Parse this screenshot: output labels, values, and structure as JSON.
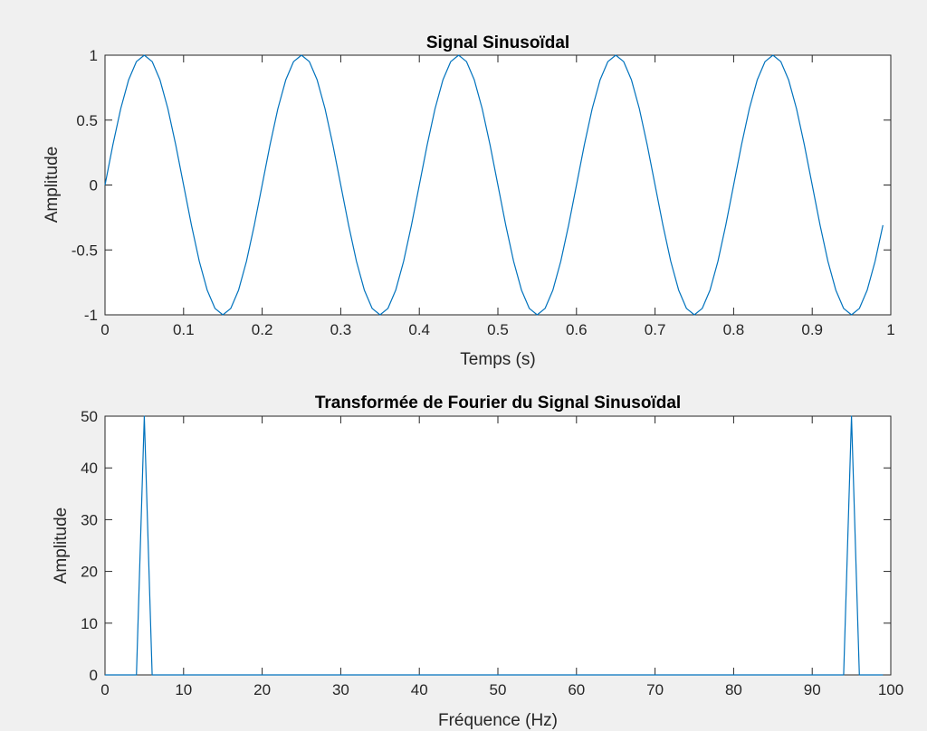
{
  "chart_data": [
    {
      "type": "line",
      "title": "Signal Sinusoïdal",
      "xlabel": "Temps (s)",
      "ylabel": "Amplitude",
      "xlim": [
        0,
        1
      ],
      "ylim": [
        -1,
        1
      ],
      "xticks": [
        "0",
        "0.1",
        "0.2",
        "0.3",
        "0.4",
        "0.5",
        "0.6",
        "0.7",
        "0.8",
        "0.9",
        "1"
      ],
      "yticks": [
        "-1",
        "-0.5",
        "0",
        "0.5",
        "1"
      ],
      "grid": false,
      "color": "#0072BD",
      "x": [
        0,
        0.01,
        0.02,
        0.03,
        0.04,
        0.05,
        0.06,
        0.07,
        0.08,
        0.09,
        0.1,
        0.11,
        0.12,
        0.13,
        0.14,
        0.15,
        0.16,
        0.17,
        0.18,
        0.19,
        0.2,
        0.21,
        0.22,
        0.23,
        0.24,
        0.25,
        0.26,
        0.27,
        0.28,
        0.29,
        0.3,
        0.31,
        0.32,
        0.33,
        0.34,
        0.35,
        0.36,
        0.37,
        0.38,
        0.39,
        0.4,
        0.41,
        0.42,
        0.43,
        0.44,
        0.45,
        0.46,
        0.47,
        0.48,
        0.49,
        0.5,
        0.51,
        0.52,
        0.53,
        0.54,
        0.55,
        0.56,
        0.57,
        0.58,
        0.59,
        0.6,
        0.61,
        0.62,
        0.63,
        0.64,
        0.65,
        0.66,
        0.67,
        0.68,
        0.69,
        0.7,
        0.71,
        0.72,
        0.73,
        0.74,
        0.75,
        0.76,
        0.77,
        0.78,
        0.79,
        0.8,
        0.81,
        0.82,
        0.83,
        0.84,
        0.85,
        0.86,
        0.87,
        0.88,
        0.89,
        0.9,
        0.91,
        0.92,
        0.93,
        0.94,
        0.95,
        0.96,
        0.97,
        0.98,
        0.99
      ],
      "y": [
        0,
        0.309,
        0.588,
        0.809,
        0.951,
        1,
        0.951,
        0.809,
        0.588,
        0.309,
        0,
        -0.309,
        -0.588,
        -0.809,
        -0.951,
        -1,
        -0.951,
        -0.809,
        -0.588,
        -0.309,
        0,
        0.309,
        0.588,
        0.809,
        0.951,
        1,
        0.951,
        0.809,
        0.588,
        0.309,
        0,
        -0.309,
        -0.588,
        -0.809,
        -0.951,
        -1,
        -0.951,
        -0.809,
        -0.588,
        -0.309,
        0,
        0.309,
        0.588,
        0.809,
        0.951,
        1,
        0.951,
        0.809,
        0.588,
        0.309,
        0,
        -0.309,
        -0.588,
        -0.809,
        -0.951,
        -1,
        -0.951,
        -0.809,
        -0.588,
        -0.309,
        0,
        0.309,
        0.588,
        0.809,
        0.951,
        1,
        0.951,
        0.809,
        0.588,
        0.309,
        0,
        -0.309,
        -0.588,
        -0.809,
        -0.951,
        -1,
        -0.951,
        -0.809,
        -0.588,
        -0.309,
        0,
        0.309,
        0.588,
        0.809,
        0.951,
        1,
        0.951,
        0.809,
        0.588,
        0.309,
        0,
        -0.309,
        -0.588,
        -0.809,
        -0.951,
        -1,
        -0.951,
        -0.809,
        -0.588,
        -0.309
      ]
    },
    {
      "type": "line",
      "title": "Transformée de Fourier du Signal Sinusoïdal",
      "xlabel": "Fréquence (Hz)",
      "ylabel": "Amplitude",
      "xlim": [
        0,
        100
      ],
      "ylim": [
        0,
        50
      ],
      "xticks": [
        "0",
        "10",
        "20",
        "30",
        "40",
        "50",
        "60",
        "70",
        "80",
        "90",
        "100"
      ],
      "yticks": [
        "0",
        "10",
        "20",
        "30",
        "40",
        "50"
      ],
      "grid": false,
      "color": "#0072BD",
      "x": [
        0,
        1,
        2,
        3,
        4,
        5,
        6,
        7,
        8,
        9,
        10,
        11,
        12,
        13,
        14,
        15,
        16,
        17,
        18,
        19,
        20,
        21,
        22,
        23,
        24,
        25,
        26,
        27,
        28,
        29,
        30,
        31,
        32,
        33,
        34,
        35,
        36,
        37,
        38,
        39,
        40,
        41,
        42,
        43,
        44,
        45,
        46,
        47,
        48,
        49,
        50,
        51,
        52,
        53,
        54,
        55,
        56,
        57,
        58,
        59,
        60,
        61,
        62,
        63,
        64,
        65,
        66,
        67,
        68,
        69,
        70,
        71,
        72,
        73,
        74,
        75,
        76,
        77,
        78,
        79,
        80,
        81,
        82,
        83,
        84,
        85,
        86,
        87,
        88,
        89,
        90,
        91,
        92,
        93,
        94,
        95,
        96,
        97,
        98,
        99
      ],
      "y": [
        0,
        0,
        0,
        0,
        0,
        50,
        0,
        0,
        0,
        0,
        0,
        0,
        0,
        0,
        0,
        0,
        0,
        0,
        0,
        0,
        0,
        0,
        0,
        0,
        0,
        0,
        0,
        0,
        0,
        0,
        0,
        0,
        0,
        0,
        0,
        0,
        0,
        0,
        0,
        0,
        0,
        0,
        0,
        0,
        0,
        0,
        0,
        0,
        0,
        0,
        0,
        0,
        0,
        0,
        0,
        0,
        0,
        0,
        0,
        0,
        0,
        0,
        0,
        0,
        0,
        0,
        0,
        0,
        0,
        0,
        0,
        0,
        0,
        0,
        0,
        0,
        0,
        0,
        0,
        0,
        0,
        0,
        0,
        0,
        0,
        0,
        0,
        0,
        0,
        0,
        0,
        0,
        0,
        0,
        0,
        50,
        0,
        0,
        0,
        0
      ]
    }
  ]
}
